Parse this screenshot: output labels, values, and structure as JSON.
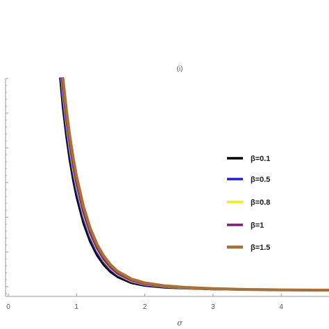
{
  "chart_data": {
    "type": "line",
    "title": "(i)",
    "xlabel": "σ",
    "ylabel": "",
    "xlim": [
      0,
      4.7
    ],
    "x_ticks": [
      "0",
      "1",
      "2",
      "3",
      "4"
    ],
    "grid": false,
    "legend_placement": "right",
    "series": [
      {
        "name": "β=0.1",
        "color": "#000000",
        "x": [
          0.76,
          0.8,
          0.85,
          0.9,
          0.95,
          1.0,
          1.1,
          1.2,
          1.3,
          1.4,
          1.5,
          1.6,
          1.8,
          2.0,
          2.3,
          2.6,
          3.0,
          3.5,
          4.0,
          4.5,
          4.7
        ],
        "y": [
          1.0,
          0.861,
          0.726,
          0.613,
          0.519,
          0.44,
          0.316,
          0.228,
          0.164,
          0.118,
          0.085,
          0.062,
          0.034,
          0.021,
          0.012,
          0.008,
          0.004,
          0.002,
          0.001,
          0.0,
          0.0
        ]
      },
      {
        "name": "β=0.5",
        "color": "#1f1fd0",
        "x": [
          0.77,
          0.8,
          0.85,
          0.9,
          0.95,
          1.0,
          1.1,
          1.2,
          1.3,
          1.4,
          1.5,
          1.6,
          1.8,
          2.0,
          2.3,
          2.6,
          3.0,
          3.5,
          4.0,
          4.5,
          4.7
        ],
        "y": [
          1.0,
          0.895,
          0.757,
          0.641,
          0.545,
          0.464,
          0.336,
          0.244,
          0.177,
          0.129,
          0.094,
          0.069,
          0.039,
          0.024,
          0.014,
          0.009,
          0.005,
          0.002,
          0.001,
          0.0,
          0.0
        ]
      },
      {
        "name": "β=0.8",
        "color": "#f2ea1b",
        "x": [
          0.78,
          0.8,
          0.85,
          0.9,
          0.95,
          1.0,
          1.1,
          1.2,
          1.3,
          1.4,
          1.5,
          1.6,
          1.8,
          2.0,
          2.3,
          2.6,
          3.0,
          3.5,
          4.0,
          4.5,
          4.7
        ],
        "y": [
          1.0,
          0.93,
          0.789,
          0.67,
          0.571,
          0.488,
          0.356,
          0.26,
          0.19,
          0.139,
          0.102,
          0.075,
          0.043,
          0.027,
          0.016,
          0.01,
          0.005,
          0.002,
          0.001,
          0.0,
          0.0
        ]
      },
      {
        "name": "β=1",
        "color": "#7a1a7a",
        "x": [
          0.785,
          0.8,
          0.85,
          0.9,
          0.95,
          1.0,
          1.1,
          1.2,
          1.3,
          1.4,
          1.5,
          1.6,
          1.8,
          2.0,
          2.3,
          2.6,
          3.0,
          3.5,
          4.0,
          4.5,
          4.7
        ],
        "y": [
          1.0,
          0.95,
          0.808,
          0.688,
          0.588,
          0.503,
          0.368,
          0.27,
          0.198,
          0.145,
          0.107,
          0.079,
          0.046,
          0.029,
          0.017,
          0.011,
          0.006,
          0.003,
          0.001,
          0.0,
          0.0
        ]
      },
      {
        "name": "β=1.5",
        "color": "#a8703a",
        "x": [
          0.8,
          0.85,
          0.9,
          0.95,
          1.0,
          1.1,
          1.2,
          1.3,
          1.4,
          1.5,
          1.6,
          1.8,
          2.0,
          2.3,
          2.6,
          3.0,
          3.5,
          4.0,
          4.5,
          4.7
        ],
        "y": [
          1.0,
          0.852,
          0.728,
          0.624,
          0.536,
          0.396,
          0.292,
          0.216,
          0.16,
          0.119,
          0.089,
          0.053,
          0.034,
          0.02,
          0.013,
          0.007,
          0.003,
          0.001,
          0.0,
          0.0
        ]
      }
    ]
  }
}
